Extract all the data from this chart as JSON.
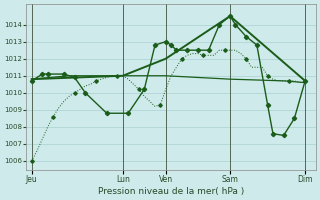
{
  "background_color": "#ceeaea",
  "grid_color": "#aacfcf",
  "line_color": "#1a5c1a",
  "title": "Pression niveau de la mer( hPa )",
  "ylim": [
    1005.5,
    1015.2
  ],
  "yticks": [
    1006,
    1007,
    1008,
    1009,
    1010,
    1011,
    1012,
    1013,
    1014
  ],
  "day_labels": [
    "Jeu",
    "Lun",
    "Ven",
    "Sam",
    "Dim"
  ],
  "day_positions": [
    0.5,
    9,
    13,
    19,
    26
  ],
  "xlim": [
    0,
    27
  ],
  "vline_positions": [
    0.5,
    9,
    13,
    19,
    26
  ],
  "series_dotted_x": [
    0.5,
    1.0,
    1.5,
    2.0,
    2.5,
    3.0,
    3.5,
    4.0,
    4.5,
    5.0,
    5.5,
    6.0,
    6.5,
    7.0,
    7.5,
    8.0,
    8.5,
    9.0,
    9.5,
    10.0,
    10.5,
    11.0,
    11.5,
    12.0,
    12.5,
    13.0,
    13.5,
    14.0,
    14.5,
    15.0,
    15.5,
    16.0,
    16.5,
    17.0,
    17.5,
    18.0,
    18.5,
    19.0,
    19.5,
    20.0,
    20.5,
    21.0,
    21.5,
    22.0,
    22.5,
    23.0,
    23.5,
    24.0,
    24.5,
    25.0,
    25.5,
    26.0
  ],
  "series_dotted_y": [
    1006.0,
    1006.6,
    1007.3,
    1008.0,
    1008.6,
    1009.1,
    1009.5,
    1009.8,
    1010.0,
    1010.2,
    1010.4,
    1010.5,
    1010.7,
    1010.8,
    1010.9,
    1011.0,
    1011.0,
    1011.0,
    1010.8,
    1010.5,
    1010.2,
    1009.8,
    1009.5,
    1009.2,
    1009.3,
    1010.2,
    1011.0,
    1011.5,
    1012.0,
    1012.2,
    1012.3,
    1012.3,
    1012.2,
    1012.2,
    1012.2,
    1012.5,
    1012.5,
    1012.5,
    1012.5,
    1012.3,
    1012.0,
    1011.5,
    1011.5,
    1011.5,
    1011.0,
    1010.8,
    1010.7,
    1010.7,
    1010.7,
    1010.7,
    1010.6,
    1010.6
  ],
  "series_flat_x": [
    0.5,
    4.0,
    9.0,
    13.0,
    19.0,
    24.0,
    26.0
  ],
  "series_flat_y": [
    1010.8,
    1011.0,
    1011.0,
    1011.0,
    1010.8,
    1010.7,
    1010.6
  ],
  "series_main_x": [
    0.5,
    1.5,
    2.0,
    3.5,
    4.5,
    5.5,
    7.5,
    9.5,
    11.0,
    12.0,
    13.0,
    13.5,
    14.0,
    15.0,
    16.0,
    17.0,
    18.0,
    19.0,
    19.5,
    20.5,
    21.5,
    22.5,
    23.0,
    24.0,
    25.0,
    26.0
  ],
  "series_main_y": [
    1010.7,
    1011.1,
    1011.1,
    1011.1,
    1010.9,
    1010.0,
    1008.8,
    1008.8,
    1010.2,
    1012.8,
    1013.0,
    1012.8,
    1012.5,
    1012.5,
    1012.5,
    1012.5,
    1014.0,
    1014.5,
    1014.0,
    1013.3,
    1012.8,
    1009.3,
    1007.6,
    1007.5,
    1008.5,
    1010.7
  ],
  "series_trend_x": [
    0.5,
    9.0,
    13.0,
    19.0,
    26.0
  ],
  "series_trend_y": [
    1010.8,
    1011.0,
    1012.0,
    1014.5,
    1010.7
  ]
}
